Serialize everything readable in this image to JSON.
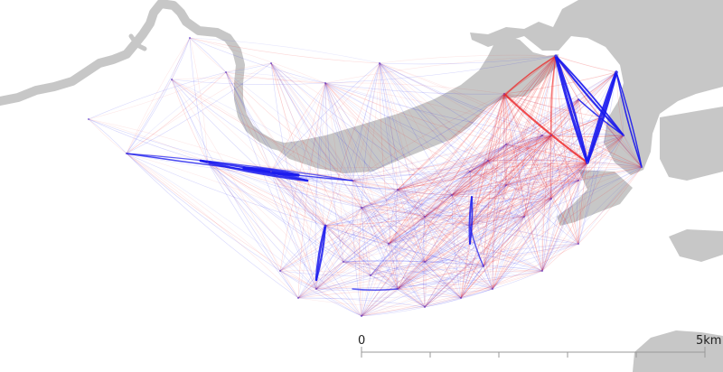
{
  "map": {
    "colors": {
      "background": "#ffffff",
      "water_land": "#c7c7c7",
      "flow_out": "#1a1aee",
      "flow_in": "#ee2020"
    },
    "scale_bar": {
      "start_label": "0",
      "end_label": "5km"
    }
  }
}
